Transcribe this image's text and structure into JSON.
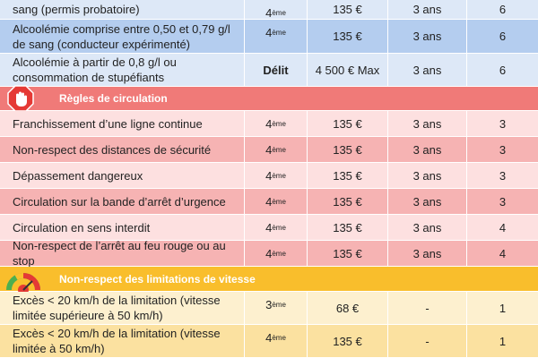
{
  "table": {
    "rows": [
      {
        "label": "sang (permis probatoire)",
        "class": {
          "number": "4",
          "suffix": "ème"
        },
        "amount": "135 €",
        "duration": "3 ans",
        "points": "6",
        "color": "#dde8f7"
      },
      {
        "label": "Alcoolémie comprise entre 0,50 et 0,79 g/l de sang (conducteur expérimenté)",
        "class": {
          "number": "4",
          "suffix": "ème"
        },
        "amount": "135 €",
        "duration": "3 ans",
        "points": "6",
        "color": "#b4cdef"
      },
      {
        "label": "Alcoolémie à partir de 0,8 g/l ou consommation de stupéfiants",
        "class": {
          "number": "Délit"
        },
        "amount": "4 500 € Max",
        "duration": "3 ans",
        "points": "6",
        "color": "#dde8f7"
      },
      {
        "title": "Règles de circulation",
        "color": "#f07a78",
        "icon": "hand"
      },
      {
        "label": "Franchissement d’une ligne continue",
        "class": {
          "number": "4",
          "suffix": "ème"
        },
        "amount": "135 €",
        "duration": "3 ans",
        "points": "3",
        "color": "#fde0e0"
      },
      {
        "label": "Non-respect des distances de sécurité",
        "class": {
          "number": "4",
          "suffix": "ème"
        },
        "amount": "135 €",
        "duration": "3 ans",
        "points": "3",
        "color": "#f6b3b3"
      },
      {
        "label": "Dépassement dangereux",
        "class": {
          "number": "4",
          "suffix": "ème"
        },
        "amount": "135 €",
        "duration": "3 ans",
        "points": "3",
        "color": "#fde0e0"
      },
      {
        "label": "Circulation sur la bande d’arrêt d’urgence",
        "class": {
          "number": "4",
          "suffix": "ème"
        },
        "amount": "135 €",
        "duration": "3 ans",
        "points": "3",
        "color": "#f6b3b3"
      },
      {
        "label": "Circulation en sens interdit",
        "class": {
          "number": "4",
          "suffix": "ème"
        },
        "amount": "135 €",
        "duration": "3 ans",
        "points": "4",
        "color": "#fde0e0"
      },
      {
        "label": "Non-respect de l’arrêt au feu rouge ou au stop",
        "class": {
          "number": "4",
          "suffix": "ème"
        },
        "amount": "135 €",
        "duration": "3 ans",
        "points": "4",
        "color": "#f6b3b3"
      },
      {
        "title": "Non-respect des limitations de vitesse",
        "color": "#f9be2c",
        "icon": "speed"
      },
      {
        "label": "Excès < 20 km/h de la limitation (vitesse limitée supérieure à 50 km/h)",
        "class": {
          "number": "3",
          "suffix": "ème"
        },
        "amount": "68 €",
        "duration": "-",
        "points": "1",
        "color": "#fdf0cf"
      },
      {
        "label": "Excès < 20 km/h de la limitation (vitesse limitée à 50 km/h)",
        "class": {
          "number": "4",
          "suffix": "ème"
        },
        "amount": "135 €",
        "duration": "-",
        "points": "1",
        "color": "#fbe1a0"
      }
    ]
  }
}
